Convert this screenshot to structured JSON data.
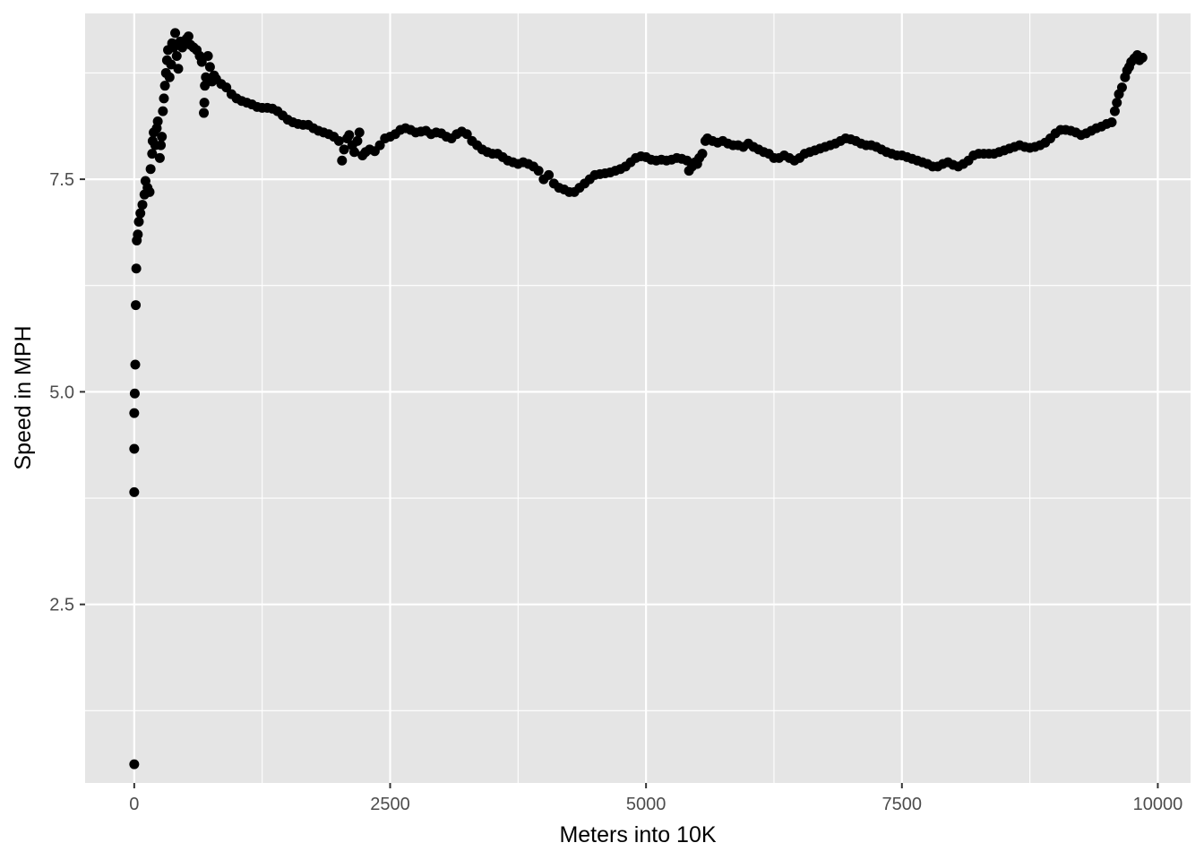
{
  "chart_data": {
    "type": "scatter",
    "title": "",
    "xlabel": "Meters into 10K",
    "ylabel": "Speed in MPH",
    "xlim": [
      -480,
      10320
    ],
    "ylim": [
      0.4,
      9.45
    ],
    "x_ticks": [
      0,
      2500,
      5000,
      7500,
      10000
    ],
    "x_tick_labels": [
      "0",
      "2500",
      "5000",
      "7500",
      "10000"
    ],
    "y_ticks": [
      2.5,
      5.0,
      7.5
    ],
    "y_tick_labels": [
      "2.5",
      "5.0",
      "7.5"
    ],
    "x_minor": [
      1250,
      3750,
      6250,
      8750
    ],
    "y_minor": [
      1.25,
      3.75,
      6.25,
      8.75
    ],
    "grid": true,
    "legend": "none",
    "colors": {
      "panel": "#e5e5e5",
      "grid": "#ffffff",
      "point": "#000000",
      "tick_text": "#4d4d4d",
      "tick_mark": "#333333"
    },
    "points": [
      [
        0,
        0.62
      ],
      [
        0,
        3.82
      ],
      [
        0,
        4.33
      ],
      [
        0,
        4.75
      ],
      [
        5,
        4.98
      ],
      [
        10,
        5.32
      ],
      [
        15,
        6.02
      ],
      [
        20,
        6.45
      ],
      [
        25,
        6.78
      ],
      [
        35,
        6.85
      ],
      [
        45,
        7.0
      ],
      [
        60,
        7.1
      ],
      [
        80,
        7.2
      ],
      [
        100,
        7.32
      ],
      [
        110,
        7.48
      ],
      [
        130,
        7.4
      ],
      [
        150,
        7.35
      ],
      [
        160,
        7.62
      ],
      [
        175,
        7.8
      ],
      [
        180,
        7.95
      ],
      [
        190,
        8.05
      ],
      [
        205,
        7.9
      ],
      [
        220,
        8.1
      ],
      [
        230,
        8.18
      ],
      [
        250,
        7.75
      ],
      [
        260,
        7.9
      ],
      [
        270,
        8.0
      ],
      [
        280,
        8.3
      ],
      [
        290,
        8.45
      ],
      [
        300,
        8.6
      ],
      [
        310,
        8.75
      ],
      [
        320,
        8.9
      ],
      [
        330,
        9.02
      ],
      [
        345,
        8.7
      ],
      [
        360,
        8.85
      ],
      [
        370,
        9.1
      ],
      [
        385,
        9.05
      ],
      [
        400,
        9.22
      ],
      [
        415,
        8.95
      ],
      [
        430,
        8.8
      ],
      [
        450,
        9.12
      ],
      [
        470,
        9.05
      ],
      [
        490,
        9.1
      ],
      [
        510,
        9.15
      ],
      [
        530,
        9.18
      ],
      [
        550,
        9.08
      ],
      [
        580,
        9.05
      ],
      [
        610,
        9.02
      ],
      [
        640,
        8.95
      ],
      [
        660,
        8.88
      ],
      [
        680,
        8.28
      ],
      [
        685,
        8.4
      ],
      [
        690,
        8.6
      ],
      [
        700,
        8.7
      ],
      [
        720,
        8.95
      ],
      [
        740,
        8.82
      ],
      [
        760,
        8.65
      ],
      [
        780,
        8.72
      ],
      [
        800,
        8.68
      ],
      [
        850,
        8.62
      ],
      [
        900,
        8.58
      ],
      [
        950,
        8.5
      ],
      [
        1000,
        8.45
      ],
      [
        1050,
        8.42
      ],
      [
        1100,
        8.4
      ],
      [
        1150,
        8.38
      ],
      [
        1200,
        8.35
      ],
      [
        1250,
        8.34
      ],
      [
        1300,
        8.34
      ],
      [
        1350,
        8.33
      ],
      [
        1400,
        8.3
      ],
      [
        1450,
        8.25
      ],
      [
        1500,
        8.2
      ],
      [
        1550,
        8.17
      ],
      [
        1600,
        8.15
      ],
      [
        1650,
        8.14
      ],
      [
        1700,
        8.14
      ],
      [
        1750,
        8.1
      ],
      [
        1800,
        8.07
      ],
      [
        1850,
        8.05
      ],
      [
        1900,
        8.03
      ],
      [
        1950,
        8.0
      ],
      [
        2000,
        7.95
      ],
      [
        2030,
        7.72
      ],
      [
        2050,
        7.85
      ],
      [
        2080,
        7.98
      ],
      [
        2100,
        8.02
      ],
      [
        2130,
        7.9
      ],
      [
        2150,
        7.82
      ],
      [
        2180,
        7.95
      ],
      [
        2200,
        8.05
      ],
      [
        2230,
        7.78
      ],
      [
        2260,
        7.82
      ],
      [
        2300,
        7.85
      ],
      [
        2350,
        7.83
      ],
      [
        2400,
        7.9
      ],
      [
        2450,
        7.98
      ],
      [
        2500,
        8.0
      ],
      [
        2550,
        8.03
      ],
      [
        2600,
        8.08
      ],
      [
        2650,
        8.1
      ],
      [
        2700,
        8.08
      ],
      [
        2750,
        8.05
      ],
      [
        2800,
        8.06
      ],
      [
        2850,
        8.07
      ],
      [
        2900,
        8.03
      ],
      [
        2950,
        8.05
      ],
      [
        3000,
        8.04
      ],
      [
        3050,
        8.0
      ],
      [
        3100,
        7.98
      ],
      [
        3150,
        8.03
      ],
      [
        3200,
        8.06
      ],
      [
        3250,
        8.03
      ],
      [
        3300,
        7.95
      ],
      [
        3350,
        7.9
      ],
      [
        3400,
        7.85
      ],
      [
        3450,
        7.82
      ],
      [
        3500,
        7.8
      ],
      [
        3550,
        7.8
      ],
      [
        3600,
        7.76
      ],
      [
        3650,
        7.72
      ],
      [
        3700,
        7.7
      ],
      [
        3750,
        7.68
      ],
      [
        3800,
        7.7
      ],
      [
        3850,
        7.68
      ],
      [
        3900,
        7.65
      ],
      [
        3950,
        7.6
      ],
      [
        4000,
        7.5
      ],
      [
        4050,
        7.55
      ],
      [
        4100,
        7.45
      ],
      [
        4150,
        7.4
      ],
      [
        4200,
        7.38
      ],
      [
        4250,
        7.35
      ],
      [
        4300,
        7.35
      ],
      [
        4350,
        7.4
      ],
      [
        4400,
        7.45
      ],
      [
        4450,
        7.5
      ],
      [
        4500,
        7.55
      ],
      [
        4550,
        7.56
      ],
      [
        4600,
        7.57
      ],
      [
        4650,
        7.58
      ],
      [
        4700,
        7.6
      ],
      [
        4750,
        7.62
      ],
      [
        4800,
        7.65
      ],
      [
        4850,
        7.7
      ],
      [
        4900,
        7.75
      ],
      [
        4950,
        7.77
      ],
      [
        5000,
        7.76
      ],
      [
        5050,
        7.73
      ],
      [
        5100,
        7.72
      ],
      [
        5150,
        7.73
      ],
      [
        5200,
        7.72
      ],
      [
        5250,
        7.73
      ],
      [
        5300,
        7.75
      ],
      [
        5350,
        7.74
      ],
      [
        5400,
        7.72
      ],
      [
        5420,
        7.6
      ],
      [
        5450,
        7.65
      ],
      [
        5480,
        7.7
      ],
      [
        5500,
        7.68
      ],
      [
        5520,
        7.75
      ],
      [
        5550,
        7.8
      ],
      [
        5580,
        7.95
      ],
      [
        5600,
        7.98
      ],
      [
        5650,
        7.95
      ],
      [
        5700,
        7.93
      ],
      [
        5750,
        7.95
      ],
      [
        5800,
        7.92
      ],
      [
        5850,
        7.9
      ],
      [
        5900,
        7.9
      ],
      [
        5950,
        7.88
      ],
      [
        6000,
        7.92
      ],
      [
        6050,
        7.88
      ],
      [
        6100,
        7.85
      ],
      [
        6150,
        7.82
      ],
      [
        6200,
        7.8
      ],
      [
        6250,
        7.75
      ],
      [
        6300,
        7.75
      ],
      [
        6350,
        7.78
      ],
      [
        6400,
        7.75
      ],
      [
        6450,
        7.72
      ],
      [
        6500,
        7.75
      ],
      [
        6550,
        7.8
      ],
      [
        6600,
        7.82
      ],
      [
        6650,
        7.84
      ],
      [
        6700,
        7.86
      ],
      [
        6750,
        7.88
      ],
      [
        6800,
        7.9
      ],
      [
        6850,
        7.92
      ],
      [
        6900,
        7.95
      ],
      [
        6950,
        7.98
      ],
      [
        7000,
        7.97
      ],
      [
        7050,
        7.95
      ],
      [
        7100,
        7.92
      ],
      [
        7150,
        7.9
      ],
      [
        7200,
        7.9
      ],
      [
        7250,
        7.88
      ],
      [
        7300,
        7.85
      ],
      [
        7350,
        7.82
      ],
      [
        7400,
        7.8
      ],
      [
        7450,
        7.78
      ],
      [
        7500,
        7.78
      ],
      [
        7550,
        7.76
      ],
      [
        7600,
        7.74
      ],
      [
        7650,
        7.72
      ],
      [
        7700,
        7.7
      ],
      [
        7750,
        7.68
      ],
      [
        7800,
        7.65
      ],
      [
        7850,
        7.65
      ],
      [
        7900,
        7.68
      ],
      [
        7950,
        7.7
      ],
      [
        8000,
        7.67
      ],
      [
        8050,
        7.65
      ],
      [
        8100,
        7.68
      ],
      [
        8150,
        7.72
      ],
      [
        8200,
        7.78
      ],
      [
        8250,
        7.8
      ],
      [
        8300,
        7.8
      ],
      [
        8350,
        7.8
      ],
      [
        8400,
        7.8
      ],
      [
        8450,
        7.82
      ],
      [
        8500,
        7.84
      ],
      [
        8550,
        7.86
      ],
      [
        8600,
        7.88
      ],
      [
        8650,
        7.9
      ],
      [
        8700,
        7.88
      ],
      [
        8750,
        7.87
      ],
      [
        8800,
        7.88
      ],
      [
        8850,
        7.9
      ],
      [
        8900,
        7.93
      ],
      [
        8950,
        7.98
      ],
      [
        9000,
        8.04
      ],
      [
        9050,
        8.08
      ],
      [
        9100,
        8.08
      ],
      [
        9150,
        8.07
      ],
      [
        9200,
        8.05
      ],
      [
        9250,
        8.02
      ],
      [
        9300,
        8.04
      ],
      [
        9350,
        8.07
      ],
      [
        9400,
        8.1
      ],
      [
        9450,
        8.12
      ],
      [
        9500,
        8.15
      ],
      [
        9550,
        8.17
      ],
      [
        9580,
        8.3
      ],
      [
        9600,
        8.4
      ],
      [
        9620,
        8.5
      ],
      [
        9650,
        8.58
      ],
      [
        9680,
        8.7
      ],
      [
        9700,
        8.78
      ],
      [
        9720,
        8.82
      ],
      [
        9740,
        8.88
      ],
      [
        9770,
        8.92
      ],
      [
        9800,
        8.96
      ],
      [
        9820,
        8.9
      ],
      [
        9850,
        8.93
      ]
    ]
  }
}
